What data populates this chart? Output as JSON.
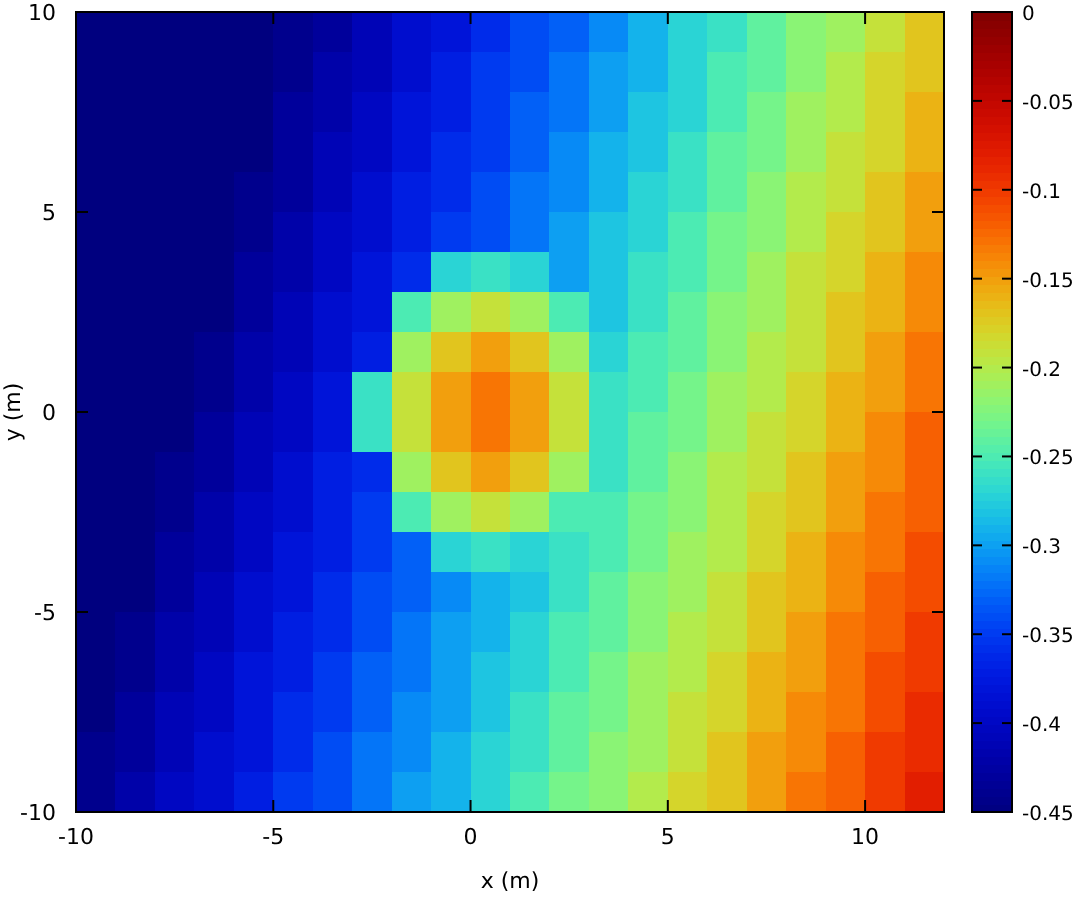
{
  "chart_data": {
    "type": "heatmap",
    "xlabel": "x (m)",
    "ylabel": "y (m)",
    "x": [
      -9.5,
      -8.5,
      -7.5,
      -6.5,
      -5.5,
      -4.5,
      -3.5,
      -2.5,
      -1.5,
      -0.5,
      0.5,
      1.5,
      2.5,
      3.5,
      4.5,
      5.5,
      6.5,
      7.5,
      8.5,
      9.5,
      10.5,
      11.5
    ],
    "y": [
      9.5,
      8.5,
      7.5,
      6.5,
      5.5,
      4.5,
      3.5,
      2.5,
      1.5,
      0.5,
      -0.5,
      -1.5,
      -2.5,
      -3.5,
      -4.5,
      -5.5,
      -6.5,
      -7.5,
      -8.5,
      -9.5
    ],
    "xlim": [
      -10,
      12
    ],
    "xticks": [
      -10,
      -5,
      0,
      5,
      10
    ],
    "ylim": [
      -10,
      10
    ],
    "yticks": [
      -10,
      -5,
      0,
      5,
      10
    ],
    "clim": [
      -0.45,
      0
    ],
    "cticks": [
      -0.45,
      -0.4,
      -0.35,
      -0.3,
      -0.25,
      -0.2,
      -0.15,
      -0.1,
      -0.05,
      0
    ],
    "cells": [
      [
        -0.45,
        -0.45,
        -0.45,
        -0.45,
        -0.45,
        -0.44,
        -0.43,
        -0.41,
        -0.39,
        -0.38,
        -0.36,
        -0.34,
        -0.33,
        -0.31,
        -0.29,
        -0.27,
        -0.26,
        -0.24,
        -0.22,
        -0.21,
        -0.19,
        -0.17
      ],
      [
        -0.45,
        -0.45,
        -0.45,
        -0.45,
        -0.45,
        -0.44,
        -0.42,
        -0.41,
        -0.39,
        -0.37,
        -0.35,
        -0.34,
        -0.32,
        -0.3,
        -0.29,
        -0.27,
        -0.25,
        -0.24,
        -0.22,
        -0.2,
        -0.18,
        -0.17
      ],
      [
        -0.45,
        -0.45,
        -0.45,
        -0.45,
        -0.45,
        -0.43,
        -0.42,
        -0.4,
        -0.38,
        -0.37,
        -0.35,
        -0.33,
        -0.32,
        -0.3,
        -0.28,
        -0.27,
        -0.25,
        -0.23,
        -0.21,
        -0.2,
        -0.18,
        -0.16
      ],
      [
        -0.45,
        -0.45,
        -0.45,
        -0.45,
        -0.45,
        -0.43,
        -0.41,
        -0.4,
        -0.38,
        -0.36,
        -0.35,
        -0.33,
        -0.31,
        -0.29,
        -0.28,
        -0.26,
        -0.24,
        -0.23,
        -0.21,
        -0.19,
        -0.18,
        -0.16
      ],
      [
        -0.45,
        -0.45,
        -0.45,
        -0.45,
        -0.44,
        -0.43,
        -0.41,
        -0.39,
        -0.37,
        -0.36,
        -0.34,
        -0.32,
        -0.31,
        -0.29,
        -0.27,
        -0.26,
        -0.24,
        -0.22,
        -0.2,
        -0.19,
        -0.17,
        -0.15
      ],
      [
        -0.45,
        -0.45,
        -0.45,
        -0.45,
        -0.44,
        -0.42,
        -0.4,
        -0.39,
        -0.37,
        -0.35,
        -0.34,
        -0.32,
        -0.3,
        -0.28,
        -0.27,
        -0.25,
        -0.23,
        -0.22,
        -0.2,
        -0.18,
        -0.17,
        -0.15
      ],
      [
        -0.45,
        -0.45,
        -0.45,
        -0.45,
        -0.43,
        -0.42,
        -0.4,
        -0.38,
        -0.36,
        -0.27,
        -0.26,
        -0.27,
        -0.3,
        -0.28,
        -0.26,
        -0.25,
        -0.23,
        -0.21,
        -0.19,
        -0.18,
        -0.16,
        -0.14
      ],
      [
        -0.45,
        -0.45,
        -0.45,
        -0.45,
        -0.43,
        -0.41,
        -0.39,
        -0.38,
        -0.25,
        -0.21,
        -0.19,
        -0.21,
        -0.25,
        -0.28,
        -0.26,
        -0.24,
        -0.22,
        -0.21,
        -0.19,
        -0.17,
        -0.16,
        -0.14
      ],
      [
        -0.45,
        -0.45,
        -0.45,
        -0.44,
        -0.42,
        -0.41,
        -0.39,
        -0.37,
        -0.21,
        -0.17,
        -0.15,
        -0.17,
        -0.21,
        -0.27,
        -0.25,
        -0.24,
        -0.22,
        -0.2,
        -0.19,
        -0.17,
        -0.15,
        -0.13
      ],
      [
        -0.45,
        -0.45,
        -0.45,
        -0.44,
        -0.42,
        -0.4,
        -0.38,
        -0.26,
        -0.19,
        -0.15,
        -0.13,
        -0.15,
        -0.19,
        -0.26,
        -0.25,
        -0.23,
        -0.21,
        -0.2,
        -0.18,
        -0.16,
        -0.15,
        -0.13
      ],
      [
        -0.45,
        -0.45,
        -0.45,
        -0.43,
        -0.41,
        -0.4,
        -0.38,
        -0.26,
        -0.19,
        -0.15,
        -0.13,
        -0.15,
        -0.19,
        -0.26,
        -0.24,
        -0.23,
        -0.21,
        -0.19,
        -0.18,
        -0.16,
        -0.14,
        -0.12
      ],
      [
        -0.45,
        -0.45,
        -0.44,
        -0.43,
        -0.41,
        -0.39,
        -0.37,
        -0.36,
        -0.21,
        -0.17,
        -0.15,
        -0.17,
        -0.21,
        -0.26,
        -0.24,
        -0.22,
        -0.2,
        -0.19,
        -0.17,
        -0.15,
        -0.14,
        -0.12
      ],
      [
        -0.45,
        -0.45,
        -0.44,
        -0.42,
        -0.4,
        -0.39,
        -0.37,
        -0.35,
        -0.25,
        -0.21,
        -0.19,
        -0.21,
        -0.25,
        -0.25,
        -0.23,
        -0.22,
        -0.2,
        -0.18,
        -0.17,
        -0.15,
        -0.13,
        -0.12
      ],
      [
        -0.45,
        -0.45,
        -0.43,
        -0.42,
        -0.4,
        -0.38,
        -0.37,
        -0.35,
        -0.33,
        -0.27,
        -0.26,
        -0.27,
        -0.26,
        -0.25,
        -0.23,
        -0.21,
        -0.2,
        -0.18,
        -0.16,
        -0.14,
        -0.13,
        -0.11
      ],
      [
        -0.45,
        -0.45,
        -0.43,
        -0.41,
        -0.39,
        -0.38,
        -0.36,
        -0.34,
        -0.33,
        -0.31,
        -0.29,
        -0.28,
        -0.26,
        -0.24,
        -0.22,
        -0.21,
        -0.19,
        -0.17,
        -0.16,
        -0.14,
        -0.12,
        -0.11
      ],
      [
        -0.45,
        -0.44,
        -0.42,
        -0.41,
        -0.39,
        -0.37,
        -0.36,
        -0.34,
        -0.32,
        -0.3,
        -0.29,
        -0.27,
        -0.25,
        -0.24,
        -0.22,
        -0.2,
        -0.19,
        -0.17,
        -0.15,
        -0.13,
        -0.12,
        -0.1
      ],
      [
        -0.45,
        -0.44,
        -0.42,
        -0.4,
        -0.38,
        -0.37,
        -0.35,
        -0.33,
        -0.32,
        -0.3,
        -0.28,
        -0.27,
        -0.25,
        -0.23,
        -0.21,
        -0.2,
        -0.18,
        -0.16,
        -0.15,
        -0.13,
        -0.11,
        -0.1
      ],
      [
        -0.45,
        -0.43,
        -0.41,
        -0.4,
        -0.38,
        -0.36,
        -0.35,
        -0.33,
        -0.31,
        -0.3,
        -0.28,
        -0.26,
        -0.24,
        -0.23,
        -0.21,
        -0.19,
        -0.18,
        -0.16,
        -0.14,
        -0.13,
        -0.11,
        -0.09
      ],
      [
        -0.44,
        -0.43,
        -0.41,
        -0.39,
        -0.38,
        -0.36,
        -0.34,
        -0.32,
        -0.31,
        -0.29,
        -0.27,
        -0.26,
        -0.24,
        -0.22,
        -0.21,
        -0.19,
        -0.17,
        -0.15,
        -0.14,
        -0.12,
        -0.1,
        -0.09
      ],
      [
        -0.44,
        -0.42,
        -0.4,
        -0.39,
        -0.37,
        -0.35,
        -0.34,
        -0.32,
        -0.3,
        -0.29,
        -0.27,
        -0.25,
        -0.23,
        -0.22,
        -0.2,
        -0.18,
        -0.17,
        -0.15,
        -0.13,
        -0.12,
        -0.1,
        -0.08
      ]
    ]
  }
}
